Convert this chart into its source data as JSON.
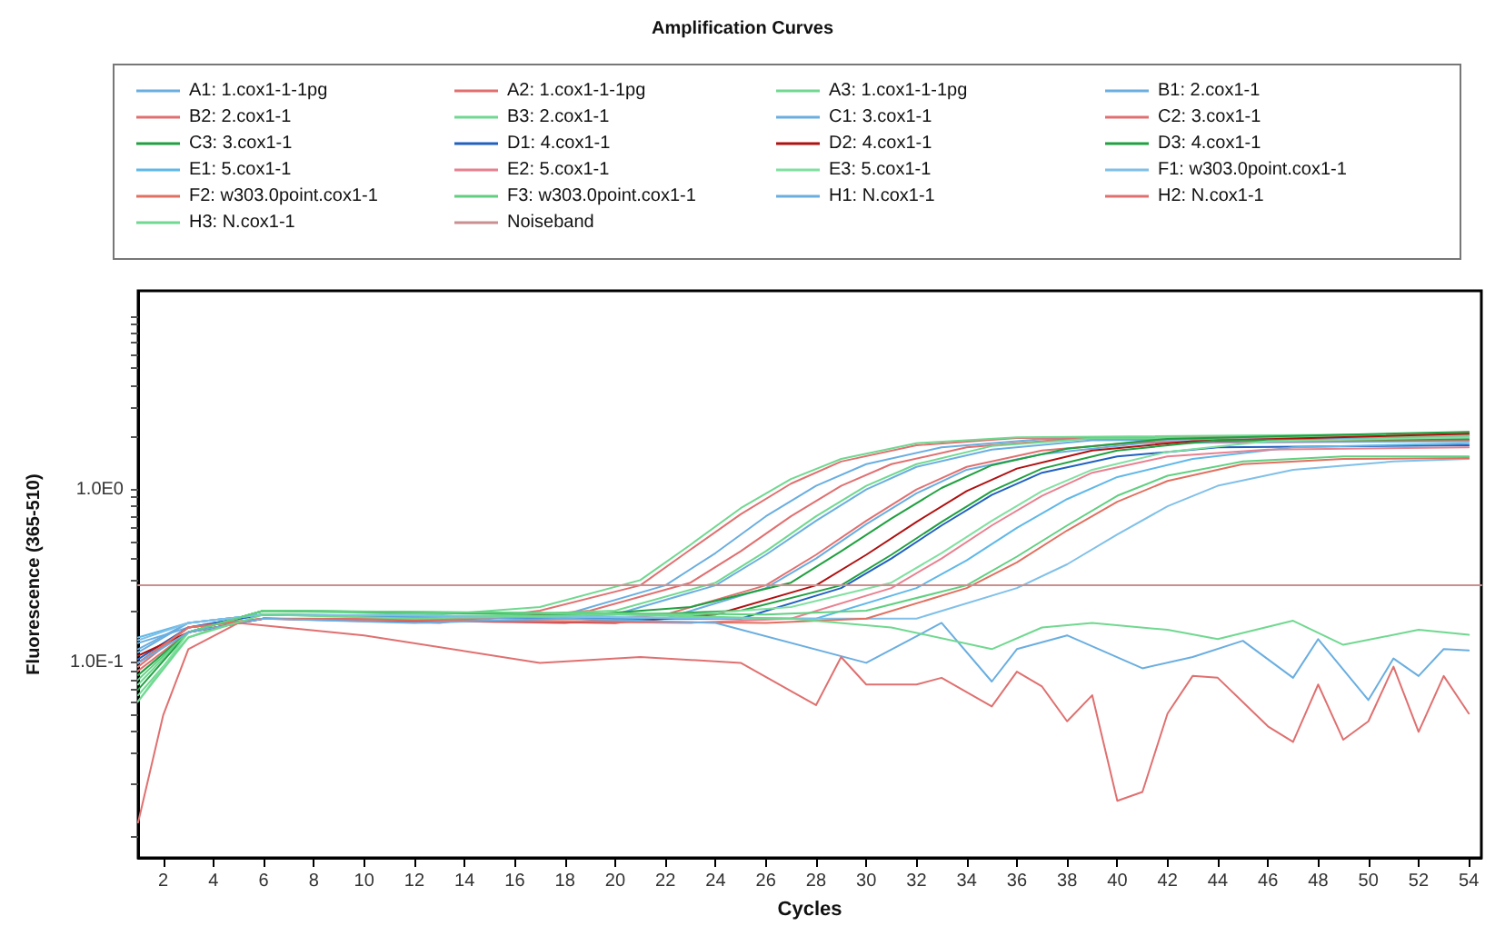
{
  "chart_data": {
    "type": "line",
    "title": "Amplification Curves",
    "xlabel": "Cycles",
    "ylabel": "Fluorescence (365-510)",
    "log": "y",
    "legend": "top",
    "marker": "none",
    "line_style": "solid",
    "xlim": [
      1,
      54.5
    ],
    "xticks": [
      2,
      4,
      6,
      8,
      10,
      12,
      14,
      16,
      18,
      20,
      22,
      24,
      26,
      28,
      30,
      32,
      34,
      36,
      38,
      40,
      42,
      44,
      46,
      48,
      50,
      52,
      54
    ],
    "ylim": [
      0.0075,
      14
    ],
    "yticks": [
      {
        "value": 0.01,
        "label": null
      },
      {
        "value": 0.02,
        "label": null
      },
      {
        "value": 0.03,
        "label": null
      },
      {
        "value": 0.04,
        "label": null
      },
      {
        "value": 0.05,
        "label": null
      },
      {
        "value": 0.06,
        "label": null
      },
      {
        "value": 0.07,
        "label": null
      },
      {
        "value": 0.08,
        "label": null
      },
      {
        "value": 0.09,
        "label": null
      },
      {
        "value": 0.1,
        "label": "1.0E-1"
      },
      {
        "value": 0.2,
        "label": null
      },
      {
        "value": 0.3,
        "label": null
      },
      {
        "value": 0.4,
        "label": null
      },
      {
        "value": 0.5,
        "label": null
      },
      {
        "value": 0.6,
        "label": null
      },
      {
        "value": 0.7,
        "label": null
      },
      {
        "value": 0.8,
        "label": null
      },
      {
        "value": 0.9,
        "label": null
      },
      {
        "value": 1,
        "label": "1.0E0"
      },
      {
        "value": 2,
        "label": null
      },
      {
        "value": 3,
        "label": null
      },
      {
        "value": 4,
        "label": null
      },
      {
        "value": 5,
        "label": null
      },
      {
        "value": 6,
        "label": null
      },
      {
        "value": 7,
        "label": null
      },
      {
        "value": 8,
        "label": null
      },
      {
        "value": 9,
        "label": null
      },
      {
        "value": 10,
        "label": null
      }
    ],
    "series": [
      {
        "name": "A1: 1.cox1-1-1pg",
        "color": "#6aaee0",
        "x": [
          1,
          3,
          6,
          14,
          18,
          22,
          24,
          26,
          28,
          30,
          33,
          37,
          54
        ],
        "values": [
          0.13,
          0.16,
          0.19,
          0.18,
          0.19,
          0.28,
          0.43,
          0.7,
          1.05,
          1.4,
          1.75,
          1.95,
          2.05
        ]
      },
      {
        "name": "A2: 1.cox1-1-1pg",
        "color": "#e07070",
        "x": [
          1,
          3,
          6,
          13,
          17,
          21,
          23,
          25,
          27,
          29,
          32,
          36,
          54
        ],
        "values": [
          0.09,
          0.15,
          0.18,
          0.17,
          0.2,
          0.28,
          0.45,
          0.72,
          1.08,
          1.45,
          1.8,
          1.98,
          2.05
        ]
      },
      {
        "name": "A3: 1.cox1-1-1pg",
        "color": "#70d890",
        "x": [
          1,
          3,
          6,
          13,
          17,
          21,
          23,
          25,
          27,
          29,
          32,
          36,
          54
        ],
        "values": [
          0.065,
          0.14,
          0.2,
          0.19,
          0.21,
          0.3,
          0.48,
          0.78,
          1.15,
          1.5,
          1.85,
          2.0,
          2.1
        ]
      },
      {
        "name": "B1: 2.cox1-1",
        "color": "#6aaee0",
        "x": [
          1,
          3,
          6,
          16,
          20,
          24,
          26,
          28,
          30,
          32,
          35,
          39,
          54
        ],
        "values": [
          0.12,
          0.17,
          0.19,
          0.18,
          0.19,
          0.28,
          0.42,
          0.66,
          1.0,
          1.35,
          1.7,
          1.92,
          2.0
        ]
      },
      {
        "name": "B2: 2.cox1-1",
        "color": "#e07070",
        "x": [
          1,
          3,
          6,
          15,
          19,
          23,
          25,
          27,
          29,
          31,
          34,
          38,
          54
        ],
        "values": [
          0.1,
          0.16,
          0.18,
          0.18,
          0.2,
          0.29,
          0.44,
          0.7,
          1.05,
          1.4,
          1.75,
          1.95,
          2.05
        ]
      },
      {
        "name": "B3: 2.cox1-1",
        "color": "#70d890",
        "x": [
          1,
          3,
          6,
          16,
          20,
          24,
          26,
          28,
          30,
          32,
          35,
          39,
          54
        ],
        "values": [
          0.075,
          0.15,
          0.2,
          0.19,
          0.2,
          0.29,
          0.44,
          0.7,
          1.05,
          1.4,
          1.78,
          1.97,
          2.05
        ]
      },
      {
        "name": "C1: 3.cox1-1",
        "color": "#6aaee0",
        "x": [
          1,
          3,
          6,
          18,
          22,
          26,
          28,
          30,
          32,
          34,
          37,
          41,
          54
        ],
        "values": [
          0.115,
          0.17,
          0.19,
          0.18,
          0.18,
          0.27,
          0.4,
          0.63,
          0.95,
          1.3,
          1.6,
          1.85,
          1.9
        ]
      },
      {
        "name": "C2: 3.cox1-1",
        "color": "#e07070",
        "x": [
          1,
          3,
          6,
          18,
          22,
          26,
          28,
          30,
          32,
          34,
          37,
          41,
          54
        ],
        "values": [
          0.095,
          0.16,
          0.18,
          0.17,
          0.19,
          0.28,
          0.42,
          0.66,
          1.0,
          1.35,
          1.68,
          1.88,
          1.92
        ]
      },
      {
        "name": "C3: 3.cox1-1",
        "color": "#20a040",
        "x": [
          1,
          3,
          6,
          19,
          23,
          27,
          29,
          31,
          33,
          35,
          38,
          42,
          54
        ],
        "values": [
          0.085,
          0.15,
          0.2,
          0.19,
          0.21,
          0.29,
          0.44,
          0.68,
          1.02,
          1.38,
          1.72,
          1.96,
          2.15
        ]
      },
      {
        "name": "D1: 4.cox1-1",
        "color": "#2060c0",
        "x": [
          1,
          3,
          6,
          21,
          25,
          29,
          31,
          33,
          35,
          37,
          40,
          44,
          54
        ],
        "values": [
          0.105,
          0.16,
          0.19,
          0.18,
          0.18,
          0.27,
          0.4,
          0.62,
          0.93,
          1.25,
          1.55,
          1.75,
          1.8
        ]
      },
      {
        "name": "D2: 4.cox1-1",
        "color": "#b01010",
        "x": [
          1,
          3,
          6,
          20,
          24,
          28,
          30,
          32,
          34,
          36,
          39,
          43,
          54
        ],
        "values": [
          0.11,
          0.15,
          0.18,
          0.17,
          0.19,
          0.28,
          0.42,
          0.65,
          0.98,
          1.32,
          1.68,
          1.9,
          2.1
        ]
      },
      {
        "name": "D3: 4.cox1-1",
        "color": "#20a040",
        "x": [
          1,
          3,
          6,
          21,
          25,
          29,
          31,
          33,
          35,
          37,
          40,
          44,
          54
        ],
        "values": [
          0.07,
          0.15,
          0.2,
          0.19,
          0.2,
          0.28,
          0.42,
          0.65,
          0.98,
          1.32,
          1.68,
          1.92,
          1.95
        ]
      },
      {
        "name": "E1: 5.cox1-1",
        "color": "#60b8e8",
        "x": [
          1,
          3,
          6,
          24,
          28,
          32,
          34,
          36,
          38,
          40,
          43,
          47,
          54
        ],
        "values": [
          0.14,
          0.17,
          0.19,
          0.18,
          0.18,
          0.27,
          0.39,
          0.6,
          0.88,
          1.18,
          1.5,
          1.75,
          1.85
        ]
      },
      {
        "name": "E2: 5.cox1-1",
        "color": "#e88090",
        "x": [
          1,
          3,
          6,
          23,
          27,
          31,
          33,
          35,
          37,
          39,
          42,
          46,
          54
        ],
        "values": [
          0.1,
          0.16,
          0.18,
          0.17,
          0.18,
          0.27,
          0.4,
          0.62,
          0.92,
          1.25,
          1.55,
          1.7,
          1.75
        ]
      },
      {
        "name": "E3: 5.cox1-1",
        "color": "#80e0a0",
        "x": [
          1,
          3,
          6,
          23,
          27,
          31,
          33,
          35,
          37,
          39,
          42,
          46,
          54
        ],
        "values": [
          0.06,
          0.15,
          0.2,
          0.19,
          0.21,
          0.29,
          0.43,
          0.66,
          0.98,
          1.3,
          1.65,
          1.9,
          2.0
        ]
      },
      {
        "name": "F1: w303.0point.cox1-1",
        "color": "#80c0e8",
        "x": [
          1,
          3,
          6,
          28,
          32,
          36,
          38,
          40,
          42,
          44,
          47,
          51,
          54
        ],
        "values": [
          0.135,
          0.17,
          0.19,
          0.18,
          0.18,
          0.27,
          0.37,
          0.55,
          0.8,
          1.05,
          1.3,
          1.45,
          1.5
        ]
      },
      {
        "name": "F2: w303.0point.cox1-1",
        "color": "#e07060",
        "x": [
          1,
          3,
          6,
          26,
          30,
          34,
          36,
          38,
          40,
          42,
          45,
          49,
          54
        ],
        "values": [
          0.1,
          0.16,
          0.18,
          0.17,
          0.18,
          0.27,
          0.38,
          0.58,
          0.85,
          1.12,
          1.4,
          1.5,
          1.52
        ]
      },
      {
        "name": "F3: w303.0point.cox1-1",
        "color": "#60d080",
        "x": [
          1,
          3,
          6,
          26,
          30,
          34,
          36,
          38,
          40,
          42,
          45,
          49,
          54
        ],
        "values": [
          0.08,
          0.15,
          0.2,
          0.19,
          0.2,
          0.28,
          0.41,
          0.62,
          0.92,
          1.2,
          1.45,
          1.55,
          1.55
        ]
      },
      {
        "name": "H1: N.cox1-1",
        "color": "#6aaee0",
        "x": [
          1,
          3,
          6,
          12,
          18,
          24,
          30,
          33,
          35,
          36,
          38,
          41,
          43,
          45,
          47,
          48,
          50,
          51,
          52,
          53,
          54
        ],
        "values": [
          0.1,
          0.15,
          0.18,
          0.17,
          0.18,
          0.17,
          0.1,
          0.17,
          0.078,
          0.12,
          0.144,
          0.093,
          0.108,
          0.134,
          0.082,
          0.137,
          0.061,
          0.106,
          0.084,
          0.12,
          0.118
        ]
      },
      {
        "name": "H2: N.cox1-1",
        "color": "#e07070",
        "x": [
          1,
          2,
          3,
          5,
          10,
          17,
          21,
          25,
          28,
          29,
          30,
          32,
          33,
          35,
          36,
          37,
          38,
          39,
          40,
          41,
          42,
          43,
          44,
          46,
          47,
          48,
          49,
          50,
          51,
          52,
          53,
          54
        ],
        "values": [
          0.012,
          0.05,
          0.12,
          0.17,
          0.144,
          0.1,
          0.108,
          0.1,
          0.057,
          0.108,
          0.075,
          0.075,
          0.082,
          0.056,
          0.089,
          0.073,
          0.046,
          0.065,
          0.016,
          0.018,
          0.051,
          0.084,
          0.082,
          0.043,
          0.035,
          0.075,
          0.036,
          0.046,
          0.095,
          0.04,
          0.084,
          0.051
        ]
      },
      {
        "name": "H3: N.cox1-1",
        "color": "#70d890",
        "x": [
          1,
          3,
          6,
          12,
          20,
          27,
          31,
          35,
          37,
          39,
          42,
          44,
          47,
          49,
          52,
          54
        ],
        "values": [
          0.06,
          0.14,
          0.19,
          0.18,
          0.19,
          0.18,
          0.16,
          0.12,
          0.16,
          0.17,
          0.155,
          0.137,
          0.175,
          0.127,
          0.155,
          0.145
        ]
      },
      {
        "name": "Noiseband",
        "color": "#c89090",
        "x": [
          1,
          54.5
        ],
        "values": [
          0.28,
          0.28
        ]
      }
    ]
  }
}
